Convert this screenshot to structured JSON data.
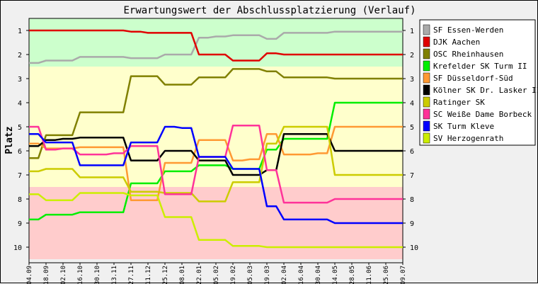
{
  "chart_data": {
    "type": "line",
    "title": "Erwartungswert der Abschlussplatzierung (Verlauf)",
    "ylabel": "Platz",
    "xlabel": "",
    "ylim": [
      1,
      10
    ],
    "y_inverted": true,
    "y_ticks": [
      "1",
      "2",
      "3",
      "4",
      "5",
      "6",
      "7",
      "8",
      "9",
      "10"
    ],
    "x": [
      "04.09",
      "18.09",
      "02.10",
      "16.10",
      "30.10",
      "13.11",
      "27.11",
      "11.12",
      "25.12",
      "08.01",
      "22.01",
      "05.02",
      "19.02",
      "05.03",
      "19.03",
      "02.04",
      "16.04",
      "30.04",
      "14.05",
      "28.05",
      "11.06",
      "25.06",
      "09.07"
    ],
    "zones": [
      {
        "from": 0.5,
        "to": 2.5,
        "color": "#ccffcc"
      },
      {
        "from": 2.5,
        "to": 7.5,
        "color": "#ffffcc"
      },
      {
        "from": 7.5,
        "to": 10.5,
        "color": "#ffcccc"
      }
    ],
    "legend_position": "right",
    "grid": false,
    "series": [
      {
        "name": "SF Essen-Werden",
        "color": "#aaaaaa",
        "values": [
          2.35,
          2.25,
          2.25,
          2.1,
          2.1,
          2.1,
          2.15,
          2.15,
          2.0,
          2.0,
          1.3,
          1.25,
          1.2,
          1.2,
          1.35,
          1.1,
          1.1,
          1.1,
          1.05,
          1.05,
          1.05,
          1.05,
          1.05
        ]
      },
      {
        "name": "DJK Aachen",
        "color": "#e00000",
        "values": [
          1.0,
          1.0,
          1.0,
          1.0,
          1.0,
          1.0,
          1.05,
          1.1,
          1.1,
          1.1,
          2.0,
          2.0,
          2.25,
          2.25,
          1.95,
          2.0,
          2.0,
          2.0,
          2.0,
          2.0,
          2.0,
          2.0,
          2.0
        ]
      },
      {
        "name": "OSC Rheinhausen",
        "color": "#808000",
        "values": [
          6.3,
          5.35,
          5.35,
          4.4,
          4.4,
          4.4,
          2.9,
          2.9,
          3.25,
          3.25,
          2.95,
          2.95,
          2.6,
          2.6,
          2.7,
          2.95,
          2.95,
          2.95,
          3.0,
          3.0,
          3.0,
          3.0,
          3.0
        ]
      },
      {
        "name": "Krefelder SK Turm II",
        "color": "#00ee00",
        "values": [
          8.85,
          8.65,
          8.65,
          8.55,
          8.55,
          8.55,
          7.35,
          7.35,
          6.85,
          6.85,
          6.6,
          6.6,
          6.75,
          6.75,
          5.95,
          5.5,
          5.5,
          5.5,
          4.0,
          4.0,
          4.0,
          4.0,
          4.0
        ]
      },
      {
        "name": "SF Düsseldorf-Süd",
        "color": "#ff9933",
        "values": [
          5.7,
          5.9,
          5.9,
          5.85,
          5.85,
          5.85,
          8.05,
          8.05,
          6.5,
          6.5,
          5.55,
          5.55,
          6.4,
          6.35,
          5.3,
          6.15,
          6.15,
          6.1,
          5.0,
          5.0,
          5.0,
          5.0,
          5.0
        ]
      },
      {
        "name": "Kölner SK Dr. Lasker II",
        "color": "#000000",
        "values": [
          5.8,
          5.55,
          5.5,
          5.45,
          5.45,
          5.45,
          6.4,
          6.4,
          6.0,
          6.0,
          6.4,
          6.4,
          7.0,
          7.0,
          6.8,
          5.3,
          5.3,
          5.3,
          6.0,
          6.0,
          6.0,
          6.0,
          6.0
        ]
      },
      {
        "name": "Ratinger SK",
        "color": "#cccc00",
        "values": [
          6.85,
          6.75,
          6.75,
          7.1,
          7.1,
          7.1,
          7.7,
          7.7,
          7.75,
          7.75,
          8.1,
          8.1,
          7.3,
          7.3,
          5.7,
          5.0,
          5.0,
          5.0,
          7.0,
          7.0,
          7.0,
          7.0,
          7.0
        ]
      },
      {
        "name": "SC Weiße Dame Borbeck",
        "color": "#ff3399",
        "values": [
          5.0,
          5.95,
          5.9,
          6.15,
          6.15,
          6.1,
          5.8,
          5.8,
          7.8,
          7.8,
          6.25,
          6.25,
          4.95,
          4.95,
          6.8,
          8.15,
          8.15,
          8.15,
          8.0,
          8.0,
          8.0,
          8.0,
          8.0
        ]
      },
      {
        "name": "SK Turm Kleve",
        "color": "#0000ff",
        "values": [
          5.3,
          5.65,
          5.65,
          6.6,
          6.6,
          6.6,
          5.65,
          5.65,
          5.0,
          5.05,
          6.25,
          6.25,
          6.75,
          6.75,
          8.3,
          8.85,
          8.85,
          8.85,
          9.0,
          9.0,
          9.0,
          9.0,
          9.0
        ]
      },
      {
        "name": "SV Herzogenrath",
        "color": "#ccee00",
        "values": [
          7.8,
          8.05,
          8.05,
          7.75,
          7.75,
          7.75,
          7.85,
          7.85,
          8.75,
          8.75,
          9.7,
          9.7,
          9.95,
          9.95,
          10.0,
          10.0,
          10.0,
          10.0,
          10.0,
          10.0,
          10.0,
          10.0,
          10.0
        ]
      }
    ]
  }
}
